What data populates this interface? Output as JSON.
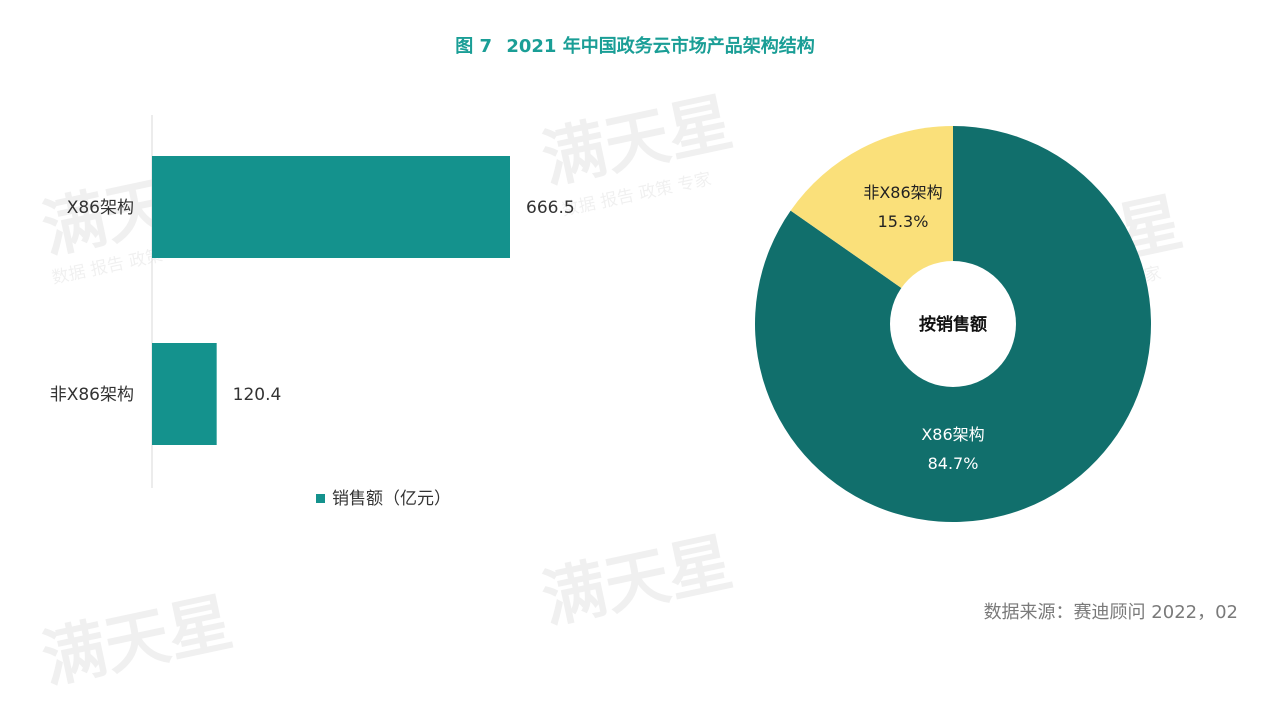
{
  "figure": {
    "number_label": "图 7",
    "title": "2021 年中国政务云市场产品架构结构",
    "source": "数据来源：赛迪顾问   2022，02"
  },
  "watermark": {
    "big": "满天星",
    "small": "数据 报告 政策 专家"
  },
  "colors": {
    "teal": "#14928d",
    "dark_teal": "#116f6c",
    "yellow": "#fae07a",
    "title": "#1a9e96"
  },
  "chart_data": [
    {
      "type": "bar",
      "orientation": "horizontal",
      "categories": [
        "X86架构",
        "非X86架构"
      ],
      "values": [
        666.5,
        120.4
      ],
      "value_labels": [
        "666.5",
        "120.4"
      ],
      "legend": "销售额（亿元）",
      "legend_position": "bottom",
      "xlim": [
        0,
        1000
      ],
      "grid": false
    },
    {
      "type": "pie",
      "style": "donut",
      "center_label": "按销售额",
      "slices": [
        {
          "label": "X86架构",
          "value": 84.7,
          "value_label": "84.7%"
        },
        {
          "label": "非X86架构",
          "value": 15.3,
          "value_label": "15.3%"
        }
      ]
    }
  ]
}
